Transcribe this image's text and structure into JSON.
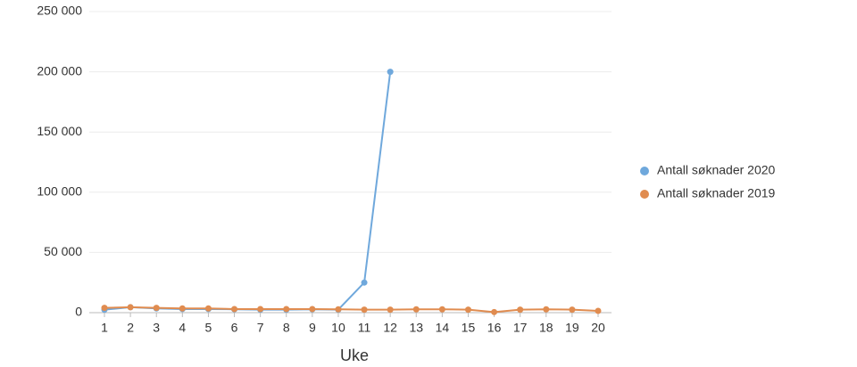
{
  "chart_data": {
    "type": "line",
    "x_label": "Uke",
    "categories": [
      "1",
      "2",
      "3",
      "4",
      "5",
      "6",
      "7",
      "8",
      "9",
      "10",
      "11",
      "12",
      "13",
      "14",
      "15",
      "16",
      "17",
      "18",
      "19",
      "20"
    ],
    "series": [
      {
        "name": "Antall søknader 2020",
        "color": "#6fa8dc",
        "values": [
          2500,
          4500,
          3500,
          3000,
          3000,
          2800,
          2500,
          2500,
          2800,
          2500,
          25000,
          200000,
          null,
          null,
          null,
          null,
          null,
          null,
          null,
          null
        ]
      },
      {
        "name": "Antall søknader 2019",
        "color": "#e08c50",
        "values": [
          4000,
          4500,
          4000,
          3500,
          3500,
          3000,
          3000,
          3000,
          3000,
          2800,
          2500,
          2500,
          2800,
          2800,
          2500,
          500,
          2500,
          2800,
          2500,
          1500
        ]
      }
    ],
    "ylim": [
      0,
      250000
    ],
    "yticks": [
      0,
      {
        "value": 50000,
        "label": "50 000"
      },
      {
        "value": 100000,
        "label": "100 000"
      },
      {
        "value": 150000,
        "label": "150 000"
      },
      {
        "value": 200000,
        "label": "200 000"
      },
      {
        "value": 250000,
        "label": "250 000"
      }
    ],
    "grid": true,
    "legend": "right"
  }
}
